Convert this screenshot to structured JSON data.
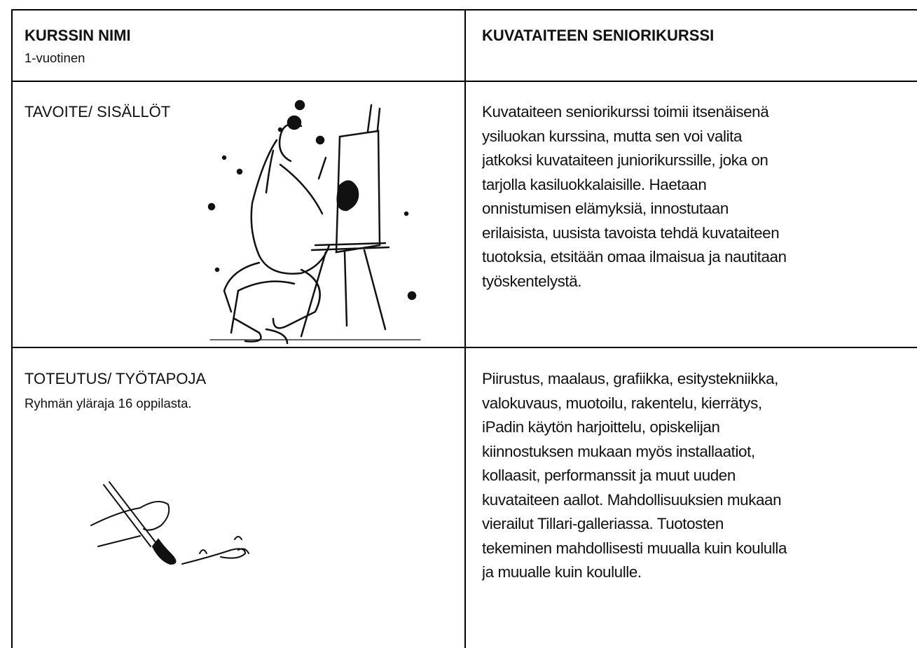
{
  "table": {
    "rows": [
      {
        "left": {
          "title": "KURSSIN NIMI",
          "subtitle": "1-vuotinen"
        },
        "right": {
          "title": "KUVATAITEEN SENIORIKURSSI"
        }
      },
      {
        "left": {
          "title": "TAVOITE/ SISÄLLÖT"
        },
        "right": {
          "lines": [
            "Kuvataiteen seniorikurssi toimii itsenäisenä",
            "ysiluokan kurssina, mutta sen voi valita",
            "jatkoksi kuvataiteen juniorikurssille, joka on",
            "tarjolla kasiluokkalaisille. Haetaan",
            "onnistumisen elämyksiä, innostutaan",
            "erilaisista, uusista tavoista tehdä kuvataiteen",
            "tuotoksia, etsitään omaa ilmaisua ja nautitaan",
            "työskentelystä."
          ]
        }
      },
      {
        "left": {
          "title": "TOTEUTUS/ TYÖTAPOJA",
          "subtitle": "Ryhmän yläraja 16 oppilasta."
        },
        "right": {
          "lines": [
            "Piirustus, maalaus, grafiikka, esitystekniikka,",
            "valokuvaus, muotoilu, rakentelu, kierrätys,",
            "iPadin käytön harjoittelu, opiskelijan",
            "kiinnostuksen mukaan myös installaatiot,",
            "kollaasit, performanssit ja muut uuden",
            "kuvataiteen aallot. Mahdollisuuksien mukaan",
            "vierailut Tillari-galleriassa. Tuotosten",
            "tekeminen mahdollisesti muualla kuin koululla",
            "ja muualle kuin koululle."
          ]
        }
      }
    ]
  }
}
